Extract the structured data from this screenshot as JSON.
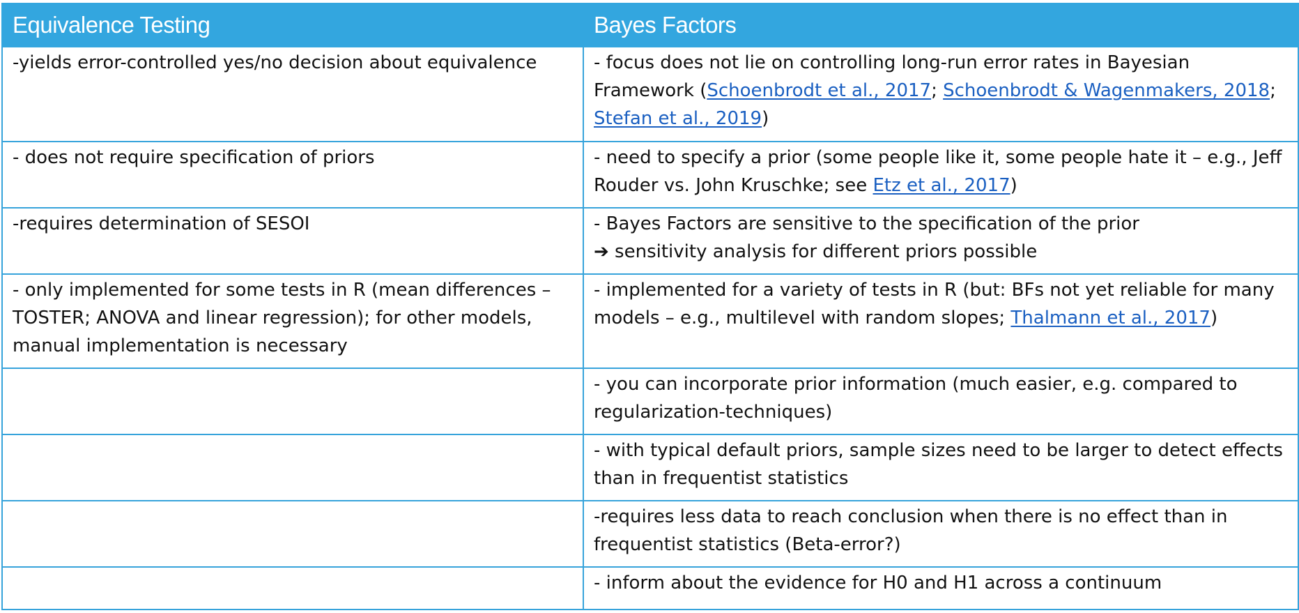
{
  "table": {
    "header": {
      "left": "Equivalence Testing",
      "right": "Bayes Factors"
    },
    "rows": [
      {
        "left": "-yields error-controlled yes/no decision about equivalence",
        "right": {
          "text_1": "- focus does not lie on controlling long-run error rates in Bayesian Framework (",
          "link_1": "Schoenbrodt et al., 2017",
          "sep_1": "; ",
          "link_2": "Schoenbrodt & Wagenmakers, 2018",
          "sep_2": "; ",
          "link_3": "Stefan et al., 2019",
          "text_2": ")"
        }
      },
      {
        "left": "- does not require specification of priors",
        "right": {
          "text_1": "- need to specify a prior (some people like it, some people hate it – e.g., Jeff Rouder vs. John Kruschke; see ",
          "link_1": "Etz et al., 2017",
          "text_2": ")"
        }
      },
      {
        "left": "-requires determination of SESOI",
        "right": {
          "line_1": "- Bayes Factors are sensitive to the specification of the prior",
          "arrow": "➔",
          "line_2": " sensitivity analysis for different priors possible"
        }
      },
      {
        "left": "- only implemented for some tests in R (mean differences – TOSTER; ANOVA and linear regression); for other models, manual implementation is necessary",
        "right": {
          "text_1": "- implemented for a variety of tests in R (but: BFs not yet reliable for many models – e.g., multilevel with random slopes; ",
          "link_1": "Thalmann et al., 2017",
          "text_2": ")"
        }
      },
      {
        "left": "",
        "right": "- you can incorporate prior information (much easier, e.g. compared to regularization-techniques)"
      },
      {
        "left": "",
        "right": "- with typical default priors, sample sizes need to be larger to detect effects than in frequentist statistics"
      },
      {
        "left": "",
        "right": "-requires less data to reach conclusion when there is no effect than in frequentist statistics (Beta-error?)"
      },
      {
        "left": "",
        "right": "- inform about the evidence for H0 and H1 across a continuum"
      }
    ]
  },
  "colors": {
    "header_bg": "#33a6df",
    "border": "#36a3db",
    "link": "#1a5fc1"
  }
}
